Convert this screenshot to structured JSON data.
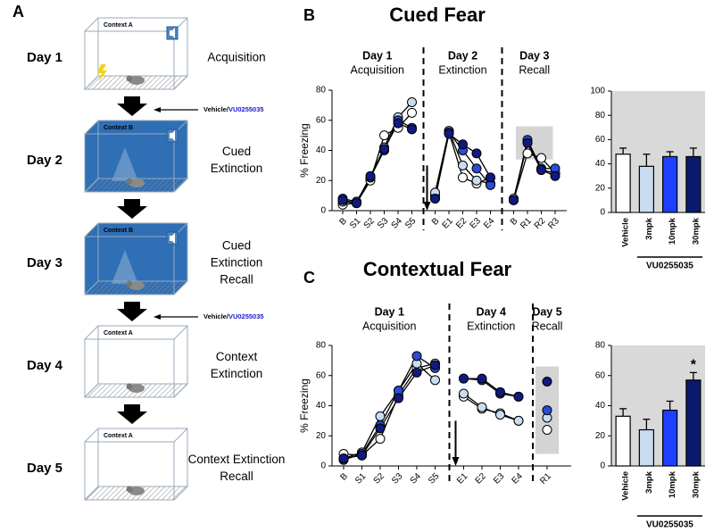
{
  "panel_labels": [
    "A",
    "B",
    "C"
  ],
  "schematic": {
    "days": [
      {
        "day": "Day 1",
        "context": "Context A",
        "label": [
          "Acquisition"
        ],
        "color": "#ffffff",
        "tone": true
      },
      {
        "day": "Day 2",
        "context": "Context B",
        "label": [
          "Cued",
          "Extinction"
        ],
        "color": "#2f6fb5",
        "tone": true
      },
      {
        "day": "Day 3",
        "context": "Context B",
        "label": [
          "Cued",
          "Extinction",
          "Recall"
        ],
        "color": "#2f6fb5",
        "tone": true
      },
      {
        "day": "Day 4",
        "context": "Context A",
        "label": [
          "Context",
          "Extinction"
        ],
        "color": "#ffffff",
        "tone": false
      },
      {
        "day": "Day 5",
        "context": "Context A",
        "label": [
          "Context Extinction",
          "Recall"
        ],
        "color": "#ffffff",
        "tone": false
      }
    ],
    "treatments": [
      {
        "vehicle": "Vehicle/",
        "drug": "VU0255035"
      },
      {
        "vehicle": "Vehicle/",
        "drug": "VU0255035"
      }
    ]
  },
  "chart_data": [
    {
      "type": "line",
      "title": "Cued Fear",
      "ylabel": "% Freezing",
      "ylim": [
        0,
        80
      ],
      "yticks": [
        0,
        20,
        40,
        60,
        80
      ],
      "colors": [
        "#ffffff",
        "#c9dcf2",
        "#2b4cd6",
        "#101a80"
      ],
      "groups": [
        {
          "title": "Day 1",
          "subtitle": "Acquisition",
          "categories": [
            "B",
            "S1",
            "S2",
            "S3",
            "S4",
            "S5"
          ],
          "values": [
            [
              4,
              5,
              20,
              50,
              55,
              65
            ],
            [
              6,
              5,
              22,
              42,
              62,
              72
            ],
            [
              8,
              6,
              22,
              40,
              60,
              55
            ],
            [
              7,
              5,
              23,
              41,
              58,
              54
            ]
          ]
        },
        {
          "title": "Day 2",
          "subtitle": "Extinction",
          "categories": [
            "B",
            "E1",
            "E2",
            "E3",
            "E4"
          ],
          "values": [
            [
              10,
              52,
              22,
              18,
              22
            ],
            [
              12,
              53,
              30,
              20,
              18
            ],
            [
              8,
              52,
              40,
              28,
              17
            ],
            [
              8,
              51,
              44,
              38,
              22
            ]
          ]
        },
        {
          "title": "Day 3",
          "subtitle": "Recall",
          "categories": [
            "B",
            "R1",
            "R2",
            "R3"
          ],
          "values": [
            [
              7,
              38,
              35,
              25
            ],
            [
              8,
              45,
              27,
              25
            ],
            [
              7,
              47,
              28,
              28
            ],
            [
              7,
              45,
              27,
              23
            ]
          ]
        }
      ]
    },
    {
      "type": "bar",
      "categories": [
        "Vehicle",
        "3mpk",
        "10mpk",
        "30mpk"
      ],
      "values": [
        48,
        38,
        46,
        46
      ],
      "errors": [
        5,
        10,
        4,
        7
      ],
      "colors": [
        "#ffffff",
        "#c9dcf2",
        "#1f3fff",
        "#0b1a6e"
      ],
      "background": "#d9d9d9",
      "ylim": [
        0,
        100
      ],
      "yticks": [
        0,
        20,
        40,
        60,
        80,
        100
      ],
      "group_label": "VU0255035",
      "significance": [
        null,
        null,
        null,
        null
      ]
    },
    {
      "type": "line",
      "title": "Contextual Fear",
      "ylabel": "% Freezing",
      "ylim": [
        0,
        80
      ],
      "yticks": [
        0,
        20,
        40,
        60,
        80
      ],
      "colors": [
        "#ffffff",
        "#c9dcf2",
        "#2b4cd6",
        "#101a80"
      ],
      "groups": [
        {
          "title": "Day 1",
          "subtitle": "Acquisition",
          "categories": [
            "B",
            "S1",
            "S2",
            "S3",
            "S4",
            "S5"
          ],
          "values": [
            [
              8,
              7,
              18,
              47,
              65,
              68
            ],
            [
              5,
              9,
              33,
              50,
              68,
              57
            ],
            [
              4,
              8,
              27,
              50,
              73,
              65
            ],
            [
              5,
              7,
              25,
              45,
              62,
              67
            ]
          ]
        },
        {
          "title": "Day 4",
          "subtitle": "Extinction",
          "categories": [
            "E1",
            "E2",
            "E3",
            "E4"
          ],
          "values": [
            [
              46,
              38,
              35,
              30
            ],
            [
              48,
              39,
              34,
              30
            ],
            [
              58,
              57,
              48,
              46
            ],
            [
              58,
              58,
              49,
              46
            ]
          ]
        },
        {
          "title": "Day 5",
          "subtitle": "Recall",
          "categories": [
            "R1"
          ],
          "values": [
            [
              24
            ],
            [
              32
            ],
            [
              37
            ],
            [
              56
            ]
          ]
        }
      ]
    },
    {
      "type": "bar",
      "categories": [
        "Vehicle",
        "3mpk",
        "10mpk",
        "30mpk"
      ],
      "values": [
        33,
        24,
        37,
        57
      ],
      "errors": [
        5,
        7,
        6,
        5
      ],
      "colors": [
        "#ffffff",
        "#c9dcf2",
        "#1f3fff",
        "#0b1a6e"
      ],
      "background": "#d9d9d9",
      "ylim": [
        0,
        80
      ],
      "yticks": [
        0,
        20,
        40,
        60,
        80
      ],
      "group_label": "VU0255035",
      "significance": [
        null,
        null,
        null,
        "*"
      ]
    }
  ]
}
